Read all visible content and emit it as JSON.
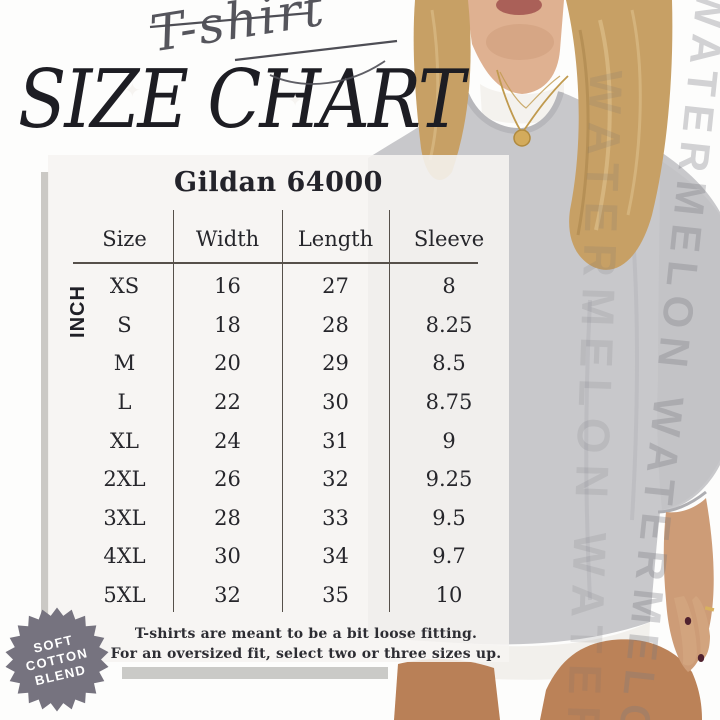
{
  "header": {
    "script_label": "T-shirt",
    "title": "SIZE CHART",
    "sparkle_icon": "✦"
  },
  "chart_data": {
    "type": "table",
    "title": "Gildan 64000",
    "unit_label": "INCH",
    "columns": [
      "Size",
      "Width",
      "Length",
      "Sleeve"
    ],
    "rows": [
      {
        "size": "XS",
        "width": "16",
        "length": "27",
        "sleeve": "8"
      },
      {
        "size": "S",
        "width": "18",
        "length": "28",
        "sleeve": "8.25"
      },
      {
        "size": "M",
        "width": "20",
        "length": "29",
        "sleeve": "8.5"
      },
      {
        "size": "L",
        "width": "22",
        "length": "30",
        "sleeve": "8.75"
      },
      {
        "size": "XL",
        "width": "24",
        "length": "31",
        "sleeve": "9"
      },
      {
        "size": "2XL",
        "width": "26",
        "length": "32",
        "sleeve": "9.25"
      },
      {
        "size": "3XL",
        "width": "28",
        "length": "33",
        "sleeve": "9.5"
      },
      {
        "size": "4XL",
        "width": "30",
        "length": "34",
        "sleeve": "9.7"
      },
      {
        "size": "5XL",
        "width": "32",
        "length": "35",
        "sleeve": "10"
      }
    ]
  },
  "notes": {
    "line1": "T-shirts are meant to be a bit loose fitting.",
    "line2": "For an oversized fit, select two or three sizes up."
  },
  "badge": {
    "lines": [
      "SOFT",
      "COTTON",
      "BLEND"
    ],
    "color": "#76737f"
  },
  "watermark": {
    "text": "WATERMELON"
  },
  "colors": {
    "panel_line": "#56504a",
    "table_ink": "#26262b",
    "title_ink": "#1d1d23",
    "shirt_gray": "#c8c8cb",
    "badge_gray": "#76737f",
    "watermark_gray": "#8c8c92"
  }
}
